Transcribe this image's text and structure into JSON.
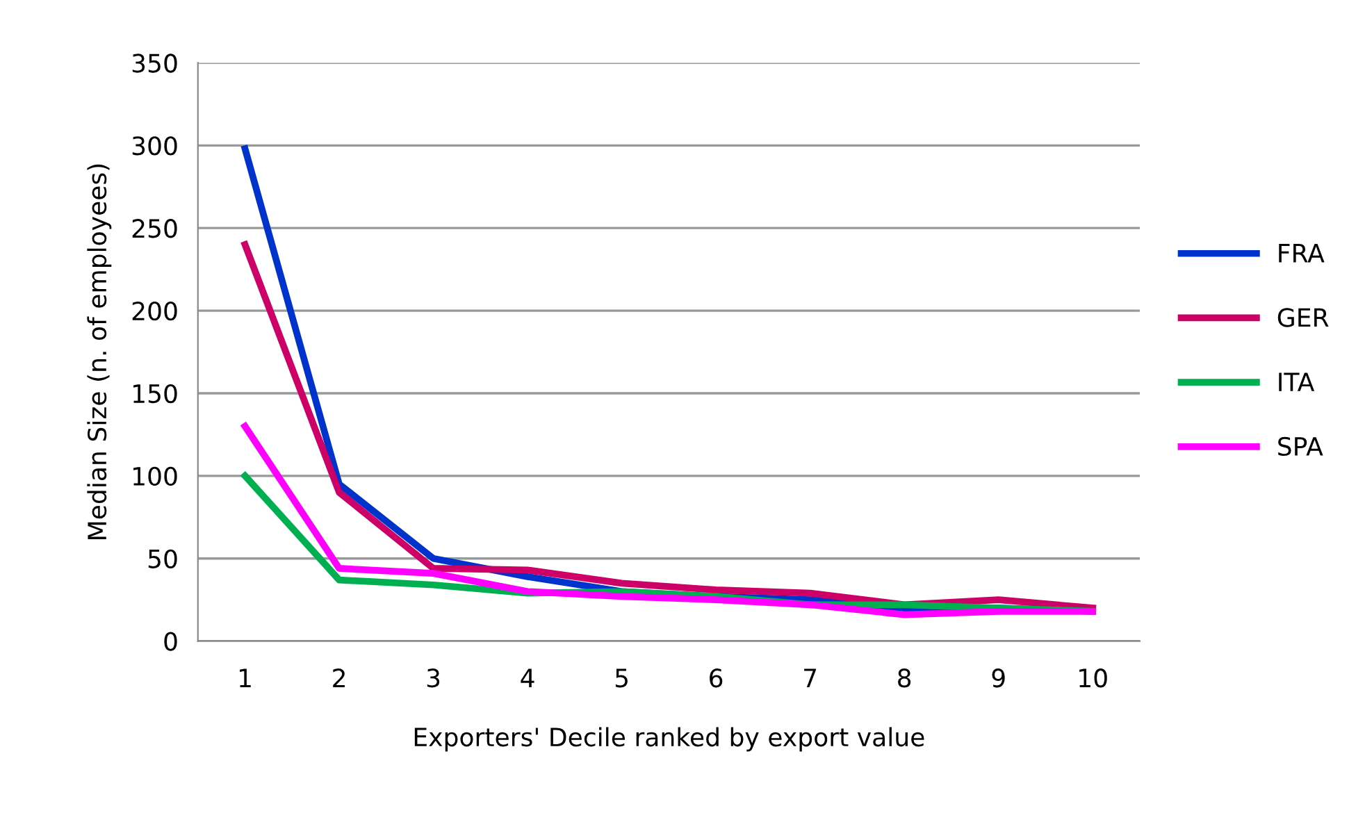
{
  "chart_data": {
    "type": "line",
    "xlabel": "Exporters' Decile ranked by export value",
    "ylabel": "Median Size (n. of employees)",
    "categories": [
      "1",
      "2",
      "3",
      "4",
      "5",
      "6",
      "7",
      "8",
      "9",
      "10"
    ],
    "series": [
      {
        "name": "FRA",
        "color": "#0033cc",
        "values": [
          298,
          95,
          50,
          39,
          30,
          27,
          25,
          20,
          20,
          18
        ]
      },
      {
        "name": "GER",
        "color": "#cc0066",
        "values": [
          240,
          90,
          44,
          43,
          35,
          31,
          29,
          22,
          25,
          20
        ]
      },
      {
        "name": "ITA",
        "color": "#00b050",
        "values": [
          100,
          37,
          34,
          29,
          30,
          27,
          22,
          22,
          20,
          18
        ]
      },
      {
        "name": "SPA",
        "color": "#ff00ff",
        "values": [
          130,
          44,
          41,
          30,
          27,
          25,
          22,
          16,
          18,
          18
        ]
      }
    ],
    "ylim": [
      0,
      350
    ],
    "yticks": [
      0,
      50,
      100,
      150,
      200,
      250,
      300,
      350
    ],
    "grid": "y",
    "legend": "right",
    "marker": "none"
  }
}
